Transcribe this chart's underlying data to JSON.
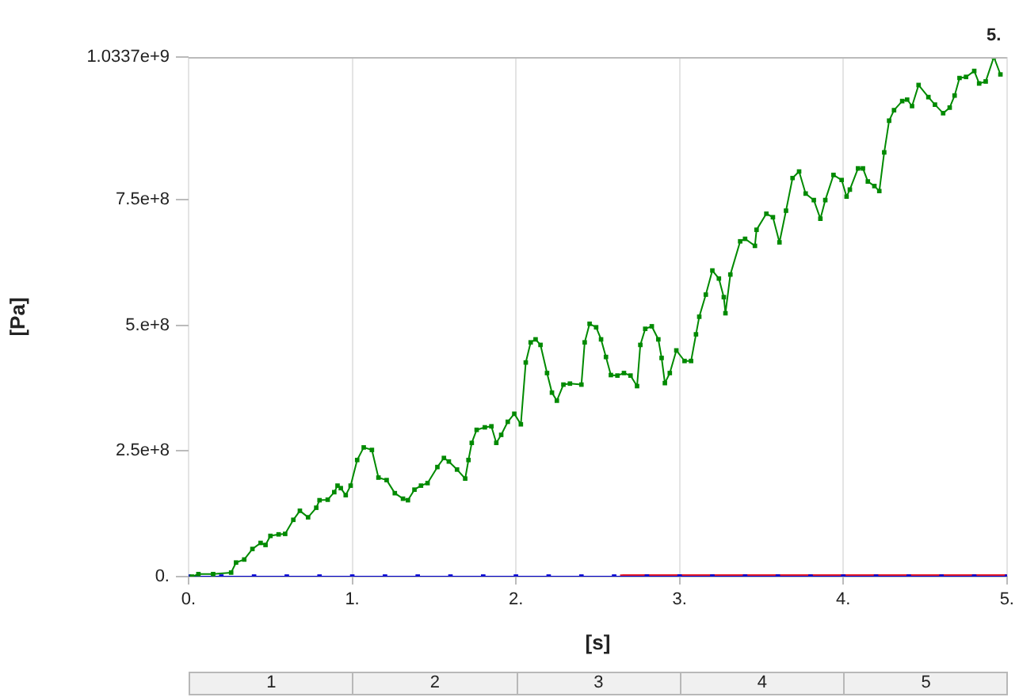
{
  "chart_data": {
    "type": "line",
    "xlabel": "[s]",
    "ylabel": "[Pa]",
    "xlim": [
      0,
      5
    ],
    "ylim": [
      0,
      1033700000
    ],
    "xticks": [
      {
        "value": 0,
        "label": "0."
      },
      {
        "value": 1,
        "label": "1."
      },
      {
        "value": 2,
        "label": "2."
      },
      {
        "value": 3,
        "label": "3."
      },
      {
        "value": 4,
        "label": "4."
      },
      {
        "value": 5,
        "label": "5."
      }
    ],
    "yticks": [
      {
        "value": 0,
        "label": "0."
      },
      {
        "value": 250000000,
        "label": "2.5e+8"
      },
      {
        "value": 500000000,
        "label": "5.e+8"
      },
      {
        "value": 750000000,
        "label": "7.5e+8"
      },
      {
        "value": 1033700000,
        "label": "1.0337e+9"
      }
    ],
    "grid": "x",
    "legend": false,
    "marker": "square",
    "line_style": "solid",
    "annotations": [
      {
        "text": "5.",
        "x": 4.92,
        "y": 1033700000
      },
      "1",
      "2",
      "3",
      "4",
      "5"
    ],
    "series": [
      {
        "color": "#e8202a",
        "x": [
          2.65,
          2.8,
          3,
          3.2,
          3.4,
          3.6,
          3.8,
          4,
          4.2,
          4.4,
          4.6,
          4.8,
          5
        ],
        "values": [
          0,
          0,
          0,
          0,
          0,
          0,
          0,
          0,
          0,
          0,
          0,
          0,
          0
        ]
      },
      {
        "color": "#0000d0",
        "x": [
          0,
          0.2,
          0.4,
          0.6,
          0.8,
          1,
          1.2,
          1.4,
          1.6,
          1.8,
          2,
          2.2,
          2.4,
          2.6,
          2.8,
          3,
          3.2,
          3.4,
          3.6,
          3.8,
          4,
          4.2,
          4.4,
          4.6,
          4.8,
          5
        ],
        "values": [
          0,
          0,
          0,
          0,
          0,
          0,
          0,
          0,
          0,
          0,
          0,
          0,
          0,
          0,
          0,
          0,
          0,
          0,
          0,
          0,
          0,
          0,
          0,
          0,
          0,
          0
        ]
      },
      {
        "color": "#008a00",
        "x": [
          0.02,
          0.06,
          0.15,
          0.26,
          0.29,
          0.34,
          0.39,
          0.44,
          0.47,
          0.5,
          0.55,
          0.59,
          0.64,
          0.68,
          0.73,
          0.78,
          0.8,
          0.85,
          0.89,
          0.91,
          0.93,
          0.96,
          0.99,
          1.03,
          1.07,
          1.12,
          1.16,
          1.21,
          1.26,
          1.31,
          1.34,
          1.38,
          1.42,
          1.46,
          1.52,
          1.56,
          1.59,
          1.64,
          1.69,
          1.71,
          1.73,
          1.76,
          1.81,
          1.85,
          1.88,
          1.91,
          1.95,
          1.99,
          2.03,
          2.06,
          2.09,
          2.12,
          2.15,
          2.19,
          2.22,
          2.25,
          2.29,
          2.33,
          2.4,
          2.42,
          2.45,
          2.49,
          2.52,
          2.55,
          2.58,
          2.62,
          2.66,
          2.7,
          2.74,
          2.76,
          2.79,
          2.83,
          2.87,
          2.89,
          2.91,
          2.94,
          2.98,
          3.03,
          3.07,
          3.1,
          3.12,
          3.16,
          3.2,
          3.24,
          3.27,
          3.28,
          3.31,
          3.37,
          3.4,
          3.46,
          3.47,
          3.53,
          3.57,
          3.61,
          3.65,
          3.69,
          3.73,
          3.77,
          3.82,
          3.86,
          3.89,
          3.94,
          3.99,
          4.02,
          4.04,
          4.09,
          4.12,
          4.15,
          4.19,
          4.22,
          4.25,
          4.28,
          4.31,
          4.36,
          4.39,
          4.42,
          4.46,
          4.52,
          4.56,
          4.61,
          4.65,
          4.68,
          4.71,
          4.75,
          4.8,
          4.83,
          4.87,
          4.92,
          4.96
        ],
        "values": [
          0,
          5000000,
          5000000,
          8000000,
          28000000,
          34000000,
          55000000,
          67000000,
          63000000,
          81000000,
          84000000,
          85000000,
          113000000,
          131000000,
          118000000,
          137000000,
          152000000,
          153000000,
          168000000,
          181000000,
          176000000,
          162000000,
          181000000,
          232000000,
          257000000,
          252000000,
          197000000,
          192000000,
          166000000,
          155000000,
          152000000,
          173000000,
          181000000,
          186000000,
          218000000,
          236000000,
          229000000,
          213000000,
          195000000,
          232000000,
          266000000,
          292000000,
          297000000,
          299000000,
          266000000,
          282000000,
          308000000,
          324000000,
          303000000,
          426000000,
          466000000,
          472000000,
          461000000,
          405000000,
          366000000,
          350000000,
          382000000,
          384000000,
          382000000,
          466000000,
          503000000,
          496000000,
          472000000,
          437000000,
          401000000,
          400000000,
          405000000,
          400000000,
          379000000,
          461000000,
          493000000,
          498000000,
          472000000,
          435000000,
          385000000,
          405000000,
          450000000,
          429000000,
          429000000,
          482000000,
          517000000,
          561000000,
          609000000,
          593000000,
          556000000,
          524000000,
          601000000,
          667000000,
          672000000,
          658000000,
          690000000,
          722000000,
          715000000,
          665000000,
          728000000,
          793000000,
          806000000,
          762000000,
          749000000,
          712000000,
          749000000,
          799000000,
          789000000,
          756000000,
          770000000,
          812000000,
          812000000,
          786000000,
          777000000,
          767000000,
          844000000,
          907000000,
          928000000,
          946000000,
          949000000,
          936000000,
          978000000,
          954000000,
          939000000,
          922000000,
          933000000,
          957000000,
          992000000,
          994000000,
          1006000000,
          981000000,
          985000000,
          1033700000,
          999000000
        ]
      }
    ]
  }
}
